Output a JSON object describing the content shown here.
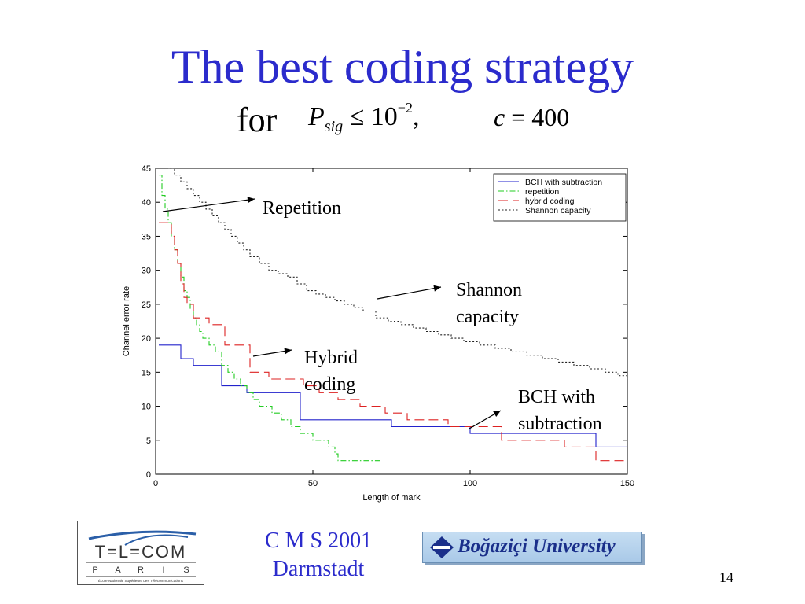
{
  "slide": {
    "title": "The best coding strategy",
    "subtitle_for": "for",
    "formula": {
      "p_symbol": "P",
      "p_subscript": "sig",
      "relation": "≤ 10",
      "exponent": "−2",
      "separator": ",",
      "c_symbol": "c",
      "c_relation": "= 400"
    },
    "footer": {
      "conference_line1": "C M S 2001",
      "conference_line2": "Darmstadt",
      "university": "Boğaziçi University",
      "page_number": "14"
    },
    "telecom_logo": {
      "name": "T=L=COM",
      "letters": [
        "P",
        "A",
        "R",
        "I",
        "S"
      ],
      "tagline": "École Nationale Supérieure des Télécommunications"
    }
  },
  "annotations": {
    "repetition": "Repetition",
    "shannon_line1": "Shannon",
    "shannon_line2": "capacity",
    "hybrid_line1": "Hybrid",
    "hybrid_line2": "coding",
    "bch_line1": "BCH with",
    "bch_line2": "subtraction"
  },
  "colors": {
    "title": "#2b2bcc",
    "bch": "#2222cc",
    "repetition": "#22cc22",
    "hybrid": "#dd2222",
    "shannon": "#222222"
  },
  "chart_data": {
    "type": "line",
    "xlabel": "Length of mark",
    "ylabel": "Channel error rate",
    "xlim": [
      0,
      150
    ],
    "ylim": [
      0,
      45
    ],
    "xticks": [
      0,
      50,
      100,
      150
    ],
    "yticks": [
      0,
      5,
      10,
      15,
      20,
      25,
      30,
      35,
      40,
      45
    ],
    "grid": false,
    "legend_position": "top-right",
    "series": [
      {
        "name": "BCH with subtraction",
        "style": "solid",
        "color": "#2222cc",
        "x": [
          1,
          8,
          12,
          21,
          29,
          46,
          75,
          100,
          140,
          150
        ],
        "y": [
          19,
          17,
          16,
          13,
          12,
          8,
          7,
          6,
          4,
          4
        ]
      },
      {
        "name": "repetition",
        "style": "dash-dot",
        "color": "#22cc22",
        "x": [
          1,
          2,
          3,
          4,
          5,
          6,
          7,
          8,
          9,
          10,
          11,
          12,
          13,
          14,
          15,
          17,
          19,
          21,
          23,
          25,
          27,
          29,
          31,
          33,
          37,
          40,
          43,
          46,
          50,
          55,
          57,
          58,
          59,
          72
        ],
        "y": [
          44,
          41,
          39,
          37,
          35,
          33,
          31,
          29,
          27,
          26,
          24,
          23,
          22,
          21,
          20,
          19,
          18,
          16,
          15,
          14,
          13,
          12,
          11,
          10,
          9,
          8,
          7,
          6,
          5,
          4,
          3,
          2,
          2,
          2
        ]
      },
      {
        "name": "hybrid coding",
        "style": "dashed",
        "color": "#dd2222",
        "x": [
          1,
          5,
          6,
          7,
          8,
          9,
          10,
          12,
          17,
          22,
          30,
          36,
          47,
          52,
          58,
          65,
          73,
          80,
          93,
          110,
          130,
          140,
          150
        ],
        "y": [
          37,
          35,
          33,
          31,
          28,
          26,
          25,
          23,
          22,
          19,
          15,
          14,
          13,
          12,
          11,
          10,
          9,
          8,
          7,
          5,
          4,
          2,
          2
        ]
      },
      {
        "name": "Shannon capacity",
        "style": "dotted",
        "color": "#222222",
        "x": [
          4,
          6,
          8,
          10,
          12,
          14,
          16,
          18,
          20,
          22,
          24,
          26,
          28,
          30,
          33,
          36,
          39,
          42,
          45,
          48,
          51,
          54,
          57,
          60,
          63,
          66,
          70,
          74,
          78,
          82,
          86,
          90,
          94,
          98,
          103,
          108,
          113,
          118,
          123,
          128,
          133,
          138,
          143,
          147,
          150
        ],
        "y": [
          45,
          44,
          43,
          42,
          41,
          40,
          39,
          38,
          37,
          36,
          35,
          34,
          33,
          32,
          31,
          30,
          29.5,
          29,
          28,
          27,
          26.5,
          26,
          25.5,
          25,
          24.5,
          24,
          23,
          22.5,
          22,
          21.5,
          21,
          20.5,
          20,
          19.5,
          19,
          18.5,
          18,
          17.5,
          17,
          16.5,
          16,
          15.5,
          15,
          14.5,
          14
        ]
      }
    ]
  }
}
